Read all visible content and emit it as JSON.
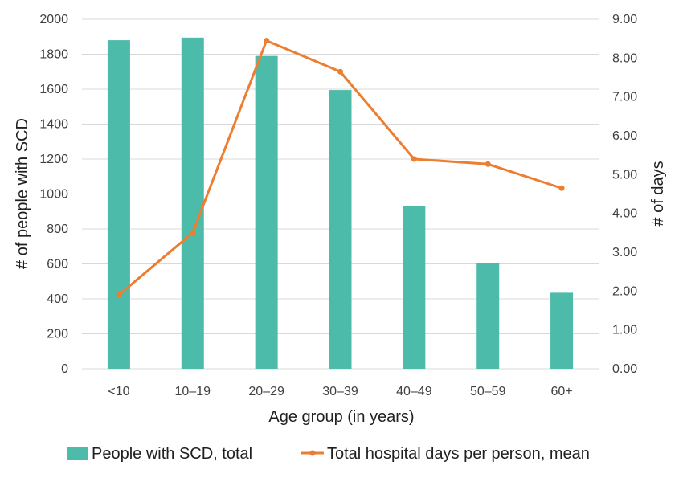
{
  "chart_data": {
    "type": "bar+line",
    "categories": [
      "<10",
      "10–19",
      "20–29",
      "30–39",
      "40–49",
      "50–59",
      "60+"
    ],
    "series": [
      {
        "name": "People with SCD, total",
        "type": "bar",
        "axis": "left",
        "color": "#4dbba9",
        "values": [
          1880,
          1895,
          1790,
          1595,
          930,
          605,
          435
        ]
      },
      {
        "name": "Total hospital days per person, mean",
        "type": "line",
        "axis": "right",
        "color": "#ed7d31",
        "values": [
          1.9,
          3.5,
          8.45,
          7.65,
          5.4,
          5.27,
          4.65
        ]
      }
    ],
    "xlabel": "Age group (in years)",
    "ylabel": "# of people with SCD",
    "y2label": "# of days",
    "ylim": [
      0,
      2000
    ],
    "y2lim": [
      0,
      9
    ],
    "yticks": [
      "0",
      "200",
      "400",
      "600",
      "800",
      "1000",
      "1200",
      "1400",
      "1600",
      "1800",
      "2000"
    ],
    "y2ticks": [
      "0.00",
      "1.00",
      "2.00",
      "3.00",
      "4.00",
      "5.00",
      "6.00",
      "7.00",
      "8.00",
      "9.00"
    ],
    "grid": true,
    "legend": "bottom"
  }
}
